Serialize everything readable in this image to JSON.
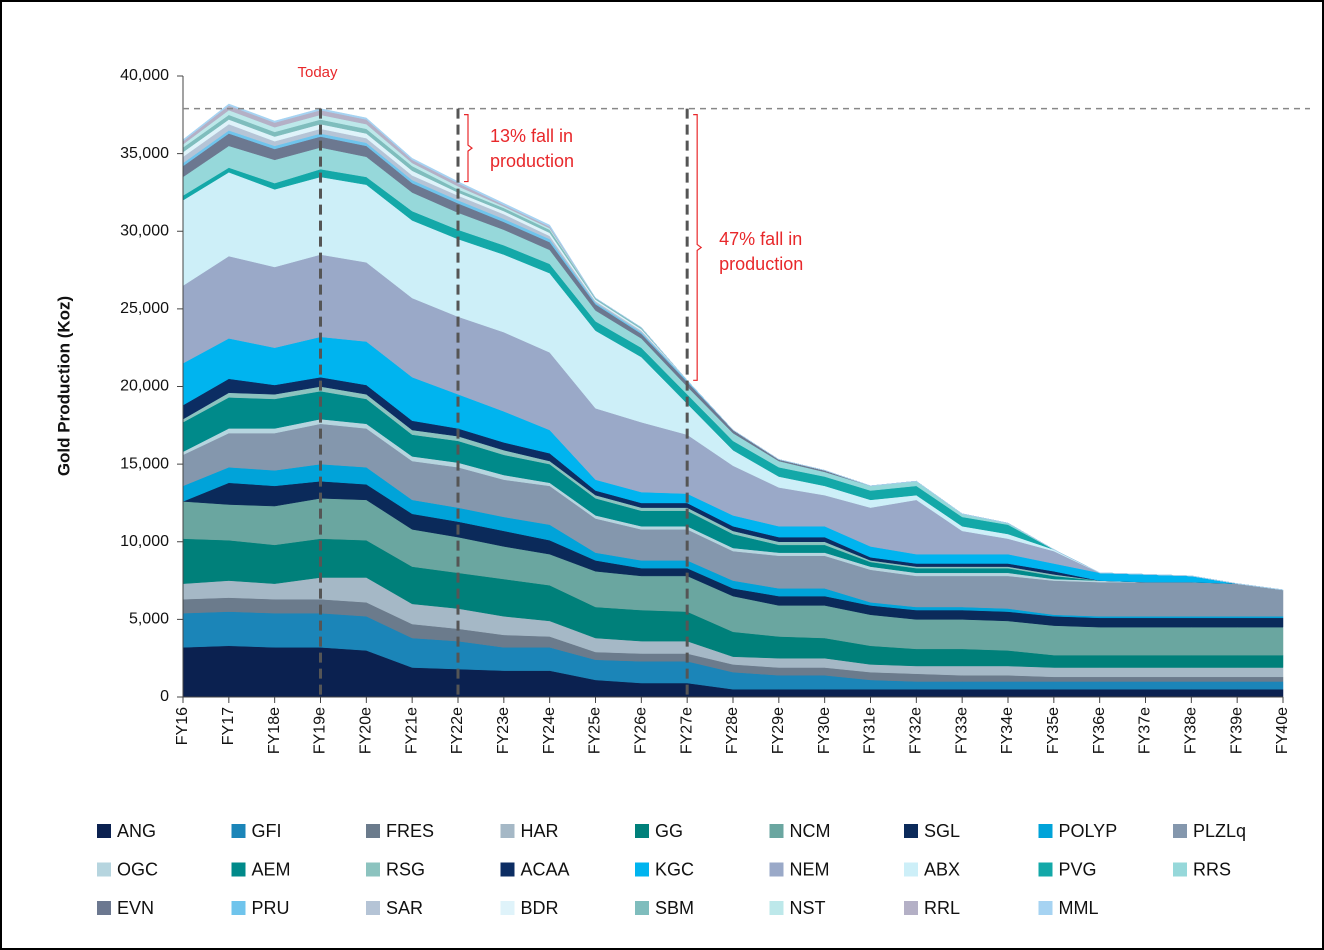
{
  "chart_data": {
    "type": "stacked_area",
    "y_label": "Gold Production (Koz)",
    "categories": [
      "FY16",
      "FY17",
      "FY18e",
      "FY19e",
      "FY20e",
      "FY21e",
      "FY22e",
      "FY23e",
      "FY24e",
      "FY25e",
      "FY26e",
      "FY27e",
      "FY28e",
      "FY29e",
      "FY30e",
      "FY31e",
      "FY32e",
      "FY33e",
      "FY34e",
      "FY35e",
      "FY36e",
      "FY37e",
      "FY38e",
      "FY39e",
      "FY40e"
    ],
    "ylim": [
      0,
      40000
    ],
    "yticks": [
      0,
      {
        "value": 5000,
        "label": "5,000"
      },
      {
        "value": 10000,
        "label": "10,000"
      },
      {
        "value": 15000,
        "label": "15,000"
      },
      {
        "value": 20000,
        "label": "20,000"
      },
      {
        "value": 25000,
        "label": "25,000"
      },
      {
        "value": 30000,
        "label": "30,000"
      },
      {
        "value": 35000,
        "label": "35,000"
      },
      {
        "value": 40000,
        "label": "40,000"
      }
    ],
    "reference_line": 37900,
    "vlines_at": [
      3,
      6,
      11
    ],
    "annotations": [
      {
        "text": [
          "Today"
        ],
        "at": 3
      },
      {
        "text": [
          "13% fall in",
          "production"
        ],
        "at": 6
      },
      {
        "text": [
          "47% fall in",
          "production"
        ],
        "at": 11
      }
    ],
    "series": [
      {
        "name": "ANG",
        "color": "#0b2150",
        "values": [
          3200,
          3300,
          3200,
          3200,
          3000,
          1900,
          1800,
          1700,
          1700,
          1100,
          900,
          900,
          500,
          500,
          500,
          500,
          500,
          500,
          500,
          500,
          500,
          500,
          500,
          500,
          500
        ]
      },
      {
        "name": "GFI",
        "color": "#1b85b8",
        "values": [
          2200,
          2200,
          2200,
          2200,
          2200,
          1900,
          1800,
          1500,
          1500,
          1300,
          1400,
          1400,
          1100,
          900,
          900,
          600,
          500,
          500,
          500,
          500,
          500,
          500,
          500,
          500,
          500
        ]
      },
      {
        "name": "FRES",
        "color": "#6b7b8c",
        "values": [
          900,
          900,
          900,
          900,
          900,
          900,
          800,
          800,
          700,
          500,
          500,
          500,
          500,
          500,
          500,
          500,
          500,
          400,
          400,
          300,
          300,
          300,
          300,
          300,
          300
        ]
      },
      {
        "name": "HAR",
        "color": "#a5b8c6",
        "values": [
          1000,
          1100,
          1000,
          1400,
          1600,
          1300,
          1300,
          1200,
          1000,
          900,
          800,
          800,
          500,
          600,
          600,
          500,
          500,
          600,
          600,
          600,
          600,
          600,
          600,
          600,
          600
        ]
      },
      {
        "name": "GG",
        "color": "#00807a",
        "values": [
          2900,
          2600,
          2500,
          2500,
          2400,
          2400,
          2300,
          2400,
          2300,
          2000,
          2000,
          1900,
          1600,
          1400,
          1300,
          1200,
          1100,
          1100,
          1000,
          800,
          800,
          800,
          800,
          800,
          800
        ]
      },
      {
        "name": "NCM",
        "color": "#6aa6a0",
        "values": [
          2400,
          2300,
          2500,
          2600,
          2600,
          2400,
          2300,
          2100,
          2000,
          2300,
          2200,
          2300,
          2300,
          2000,
          2100,
          2000,
          1900,
          1900,
          1900,
          1900,
          1800,
          1800,
          1800,
          1800,
          1800
        ]
      },
      {
        "name": "SGL",
        "color": "#0b2a5a",
        "values": [
          0,
          1400,
          1300,
          1100,
          1000,
          1000,
          1000,
          1000,
          900,
          700,
          500,
          500,
          500,
          600,
          600,
          600,
          600,
          600,
          600,
          600,
          600,
          600,
          600,
          600,
          600
        ]
      },
      {
        "name": "POLYP",
        "color": "#00a3d9",
        "values": [
          1000,
          1000,
          1000,
          1100,
          1100,
          900,
          900,
          900,
          1000,
          500,
          500,
          500,
          500,
          500,
          500,
          200,
          200,
          200,
          200,
          100,
          100,
          100,
          100,
          100,
          100
        ]
      },
      {
        "name": "PLZLq",
        "color": "#8497ad",
        "values": [
          2000,
          2200,
          2400,
          2600,
          2500,
          2500,
          2600,
          2400,
          2500,
          2200,
          2000,
          2000,
          1900,
          2100,
          2100,
          2100,
          2000,
          2000,
          2100,
          2200,
          2200,
          2200,
          2200,
          2100,
          1700
        ]
      },
      {
        "name": "OGC",
        "color": "#b6d5df",
        "values": [
          200,
          300,
          300,
          300,
          300,
          300,
          300,
          300,
          200,
          200,
          200,
          200,
          200,
          200,
          200,
          200,
          200,
          200,
          200,
          100,
          100,
          0,
          0,
          0,
          0
        ]
      },
      {
        "name": "AEM",
        "color": "#008a8a",
        "values": [
          1900,
          2000,
          1900,
          1800,
          1600,
          1400,
          1400,
          1300,
          1200,
          1100,
          1000,
          1000,
          900,
          500,
          500,
          300,
          300,
          300,
          300,
          200,
          0,
          0,
          0,
          0,
          0
        ]
      },
      {
        "name": "RSG",
        "color": "#8cc3bf",
        "values": [
          200,
          300,
          300,
          300,
          300,
          300,
          300,
          300,
          200,
          200,
          200,
          200,
          200,
          200,
          200,
          100,
          100,
          100,
          100,
          100,
          0,
          0,
          0,
          0,
          0
        ]
      },
      {
        "name": "ACAA",
        "color": "#0c2d63",
        "values": [
          900,
          900,
          600,
          600,
          600,
          600,
          500,
          500,
          500,
          300,
          300,
          300,
          300,
          300,
          300,
          200,
          200,
          200,
          200,
          200,
          0,
          0,
          0,
          0,
          0
        ]
      },
      {
        "name": "KGC",
        "color": "#00b4ef",
        "values": [
          2700,
          2600,
          2400,
          2600,
          2800,
          2800,
          2200,
          2000,
          1500,
          700,
          700,
          600,
          700,
          700,
          700,
          700,
          600,
          600,
          600,
          500,
          500,
          500,
          400,
          0,
          0
        ]
      },
      {
        "name": "NEM",
        "color": "#9aa9c8",
        "values": [
          5000,
          5300,
          5200,
          5300,
          5100,
          5100,
          5000,
          5100,
          5000,
          4600,
          4500,
          3800,
          3200,
          2500,
          2000,
          2500,
          3500,
          1500,
          1000,
          800,
          0,
          0,
          0,
          0,
          0
        ]
      },
      {
        "name": "ABX",
        "color": "#cdeff8",
        "values": [
          5500,
          5400,
          5000,
          5000,
          5000,
          5000,
          5000,
          5000,
          5100,
          5000,
          4200,
          2000,
          1000,
          700,
          600,
          500,
          300,
          300,
          300,
          100,
          0,
          0,
          0,
          0,
          0
        ]
      },
      {
        "name": "PVG",
        "color": "#13a8a8",
        "values": [
          300,
          300,
          400,
          500,
          500,
          600,
          600,
          600,
          600,
          600,
          600,
          600,
          600,
          600,
          600,
          600,
          600,
          600,
          600,
          0,
          0,
          0,
          0,
          0,
          0
        ]
      },
      {
        "name": "RRS",
        "color": "#96d8da",
        "values": [
          1200,
          1400,
          1500,
          1400,
          1300,
          1200,
          1100,
          1000,
          900,
          700,
          600,
          500,
          500,
          400,
          300,
          300,
          300,
          200,
          100,
          0,
          0,
          0,
          0,
          0,
          0
        ]
      },
      {
        "name": "EVN",
        "color": "#6c7890",
        "values": [
          700,
          800,
          700,
          700,
          700,
          600,
          600,
          500,
          500,
          400,
          300,
          300,
          200,
          100,
          100,
          0,
          0,
          0,
          0,
          0,
          0,
          0,
          0,
          0,
          0
        ]
      },
      {
        "name": "PRU",
        "color": "#6fc4ec",
        "values": [
          200,
          200,
          200,
          200,
          200,
          200,
          200,
          200,
          200,
          100,
          100,
          100,
          0,
          0,
          0,
          0,
          0,
          0,
          0,
          0,
          0,
          0,
          0,
          0,
          0
        ]
      },
      {
        "name": "SAR",
        "color": "#b5c4d6",
        "values": [
          400,
          400,
          300,
          300,
          300,
          300,
          300,
          300,
          200,
          100,
          100,
          0,
          0,
          0,
          0,
          0,
          0,
          0,
          0,
          0,
          0,
          0,
          0,
          0,
          0
        ]
      },
      {
        "name": "BDR",
        "color": "#dff3fa",
        "values": [
          300,
          300,
          300,
          300,
          300,
          300,
          200,
          200,
          200,
          100,
          100,
          0,
          0,
          0,
          0,
          0,
          0,
          0,
          0,
          0,
          0,
          0,
          0,
          0,
          0
        ]
      },
      {
        "name": "SBM",
        "color": "#7fbdbd",
        "values": [
          300,
          300,
          300,
          300,
          300,
          300,
          200,
          200,
          200,
          100,
          100,
          0,
          0,
          0,
          0,
          0,
          0,
          0,
          0,
          0,
          0,
          0,
          0,
          0,
          0
        ]
      },
      {
        "name": "NST",
        "color": "#bde8ea",
        "values": [
          200,
          300,
          300,
          300,
          300,
          200,
          200,
          100,
          100,
          0,
          0,
          0,
          0,
          0,
          0,
          0,
          0,
          0,
          0,
          0,
          0,
          0,
          0,
          0,
          0
        ]
      },
      {
        "name": "RRL",
        "color": "#b4b0c6",
        "values": [
          200,
          300,
          300,
          300,
          300,
          200,
          200,
          100,
          100,
          0,
          0,
          0,
          0,
          0,
          0,
          0,
          0,
          0,
          0,
          0,
          0,
          0,
          0,
          0,
          0
        ]
      },
      {
        "name": "MML",
        "color": "#a6d3f2",
        "values": [
          100,
          100,
          100,
          100,
          100,
          100,
          100,
          100,
          100,
          0,
          0,
          0,
          0,
          0,
          0,
          0,
          0,
          0,
          0,
          0,
          0,
          0,
          0,
          0,
          0
        ]
      }
    ]
  }
}
